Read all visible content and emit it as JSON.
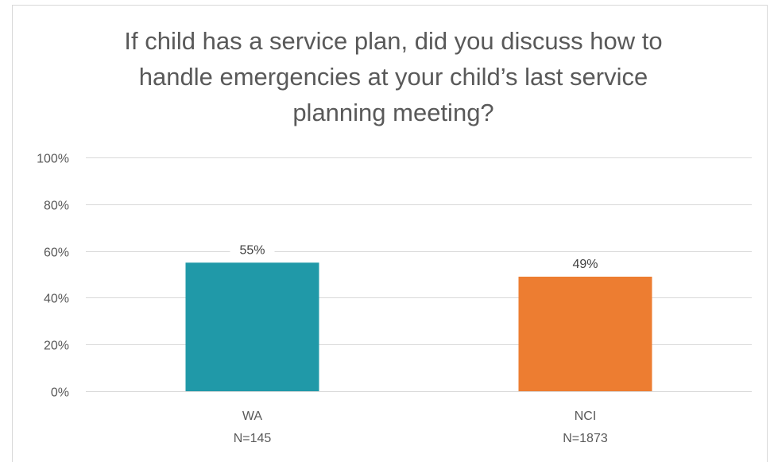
{
  "chart_data": {
    "type": "bar",
    "title_lines": [
      "If child has a service plan, did you discuss how to",
      "handle emergencies at your child’s last service",
      "planning meeting?"
    ],
    "categories": [
      {
        "name": "WA",
        "n_label": "N=145"
      },
      {
        "name": "NCI",
        "n_label": "N=1873"
      }
    ],
    "values": [
      55,
      49
    ],
    "data_labels": [
      "55%",
      "49%"
    ],
    "colors": [
      "#2099A8",
      "#ED7D31"
    ],
    "ylim": [
      0,
      100
    ],
    "yticks": [
      0,
      20,
      40,
      60,
      80,
      100
    ],
    "ytick_labels": [
      "0%",
      "20%",
      "40%",
      "60%",
      "80%",
      "100%"
    ],
    "grid": true,
    "legend": "none"
  }
}
